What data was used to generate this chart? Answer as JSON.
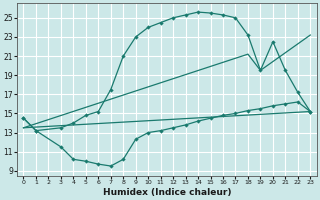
{
  "xlabel": "Humidex (Indice chaleur)",
  "bg_color": "#cce8e8",
  "grid_color": "#ffffff",
  "line_color": "#1a7a6e",
  "xlim": [
    -0.5,
    23.5
  ],
  "ylim": [
    8.5,
    26.5
  ],
  "xticks": [
    0,
    1,
    2,
    3,
    4,
    5,
    6,
    7,
    8,
    9,
    10,
    11,
    12,
    13,
    14,
    15,
    16,
    17,
    18,
    19,
    20,
    21,
    22,
    23
  ],
  "yticks": [
    9,
    11,
    13,
    15,
    17,
    19,
    21,
    23,
    25
  ],
  "line1_x": [
    0,
    1,
    3,
    4,
    5,
    6,
    7,
    8,
    9,
    10,
    11,
    12,
    13,
    14,
    15,
    16,
    17,
    18,
    19,
    20,
    21,
    22,
    23
  ],
  "line1_y": [
    14.5,
    13.2,
    13.5,
    14.0,
    14.8,
    15.2,
    17.5,
    21.0,
    23.0,
    24.0,
    24.5,
    25.0,
    25.3,
    25.6,
    25.5,
    25.3,
    25.0,
    23.2,
    19.5,
    22.5,
    19.5,
    17.2,
    15.2
  ],
  "line2_x": [
    0,
    1,
    3,
    4,
    5,
    6,
    7,
    8,
    9,
    10,
    11,
    12,
    13,
    14,
    15,
    16,
    17,
    18,
    19,
    20,
    21,
    22,
    23
  ],
  "line2_y": [
    14.5,
    13.2,
    11.5,
    10.2,
    10.0,
    9.7,
    9.5,
    10.2,
    12.3,
    13.0,
    13.2,
    13.5,
    13.8,
    14.2,
    14.5,
    14.8,
    15.0,
    15.3,
    15.5,
    15.8,
    16.0,
    16.2,
    15.2
  ],
  "line3_x": [
    0,
    18,
    19,
    23
  ],
  "line3_y": [
    13.5,
    21.2,
    19.5,
    23.2
  ],
  "line4_x": [
    0,
    23
  ],
  "line4_y": [
    13.5,
    15.2
  ]
}
